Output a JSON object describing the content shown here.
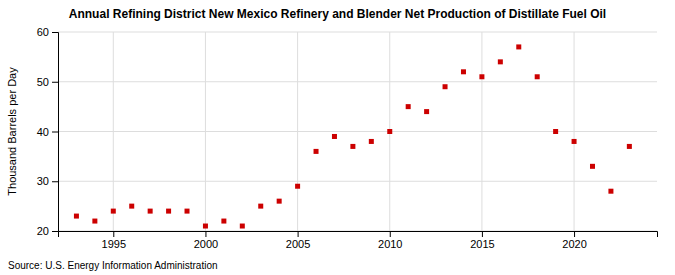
{
  "chart_data": {
    "type": "scatter",
    "title": "Annual Refining District New Mexico Refinery and Blender Net Production of Distillate Fuel Oil",
    "y_label": "Thousand Barrels per Day",
    "annotations": [
      "Source: U.S. Energy Information Administration"
    ],
    "x": [
      1993,
      1994,
      1995,
      1996,
      1997,
      1998,
      1999,
      2000,
      2001,
      2002,
      2003,
      2004,
      2005,
      2006,
      2007,
      2008,
      2009,
      2010,
      2011,
      2012,
      2013,
      2014,
      2015,
      2016,
      2017,
      2018,
      2019,
      2020,
      2021,
      2022,
      2023
    ],
    "values": [
      23,
      22,
      24,
      25,
      24,
      24,
      24,
      21,
      22,
      21,
      25,
      26,
      29,
      36,
      39,
      37,
      38,
      40,
      45,
      44,
      49,
      52,
      51,
      54,
      57,
      51,
      40,
      38,
      33,
      28,
      37
    ],
    "color": "#cc0000",
    "marker": "square",
    "xlim": [
      1992,
      2024.5
    ],
    "ylim": [
      20,
      60
    ],
    "xticks": [
      1995,
      2000,
      2005,
      2010,
      2015,
      2020
    ],
    "yticks": [
      20,
      30,
      40,
      50,
      60
    ],
    "grid": true
  }
}
